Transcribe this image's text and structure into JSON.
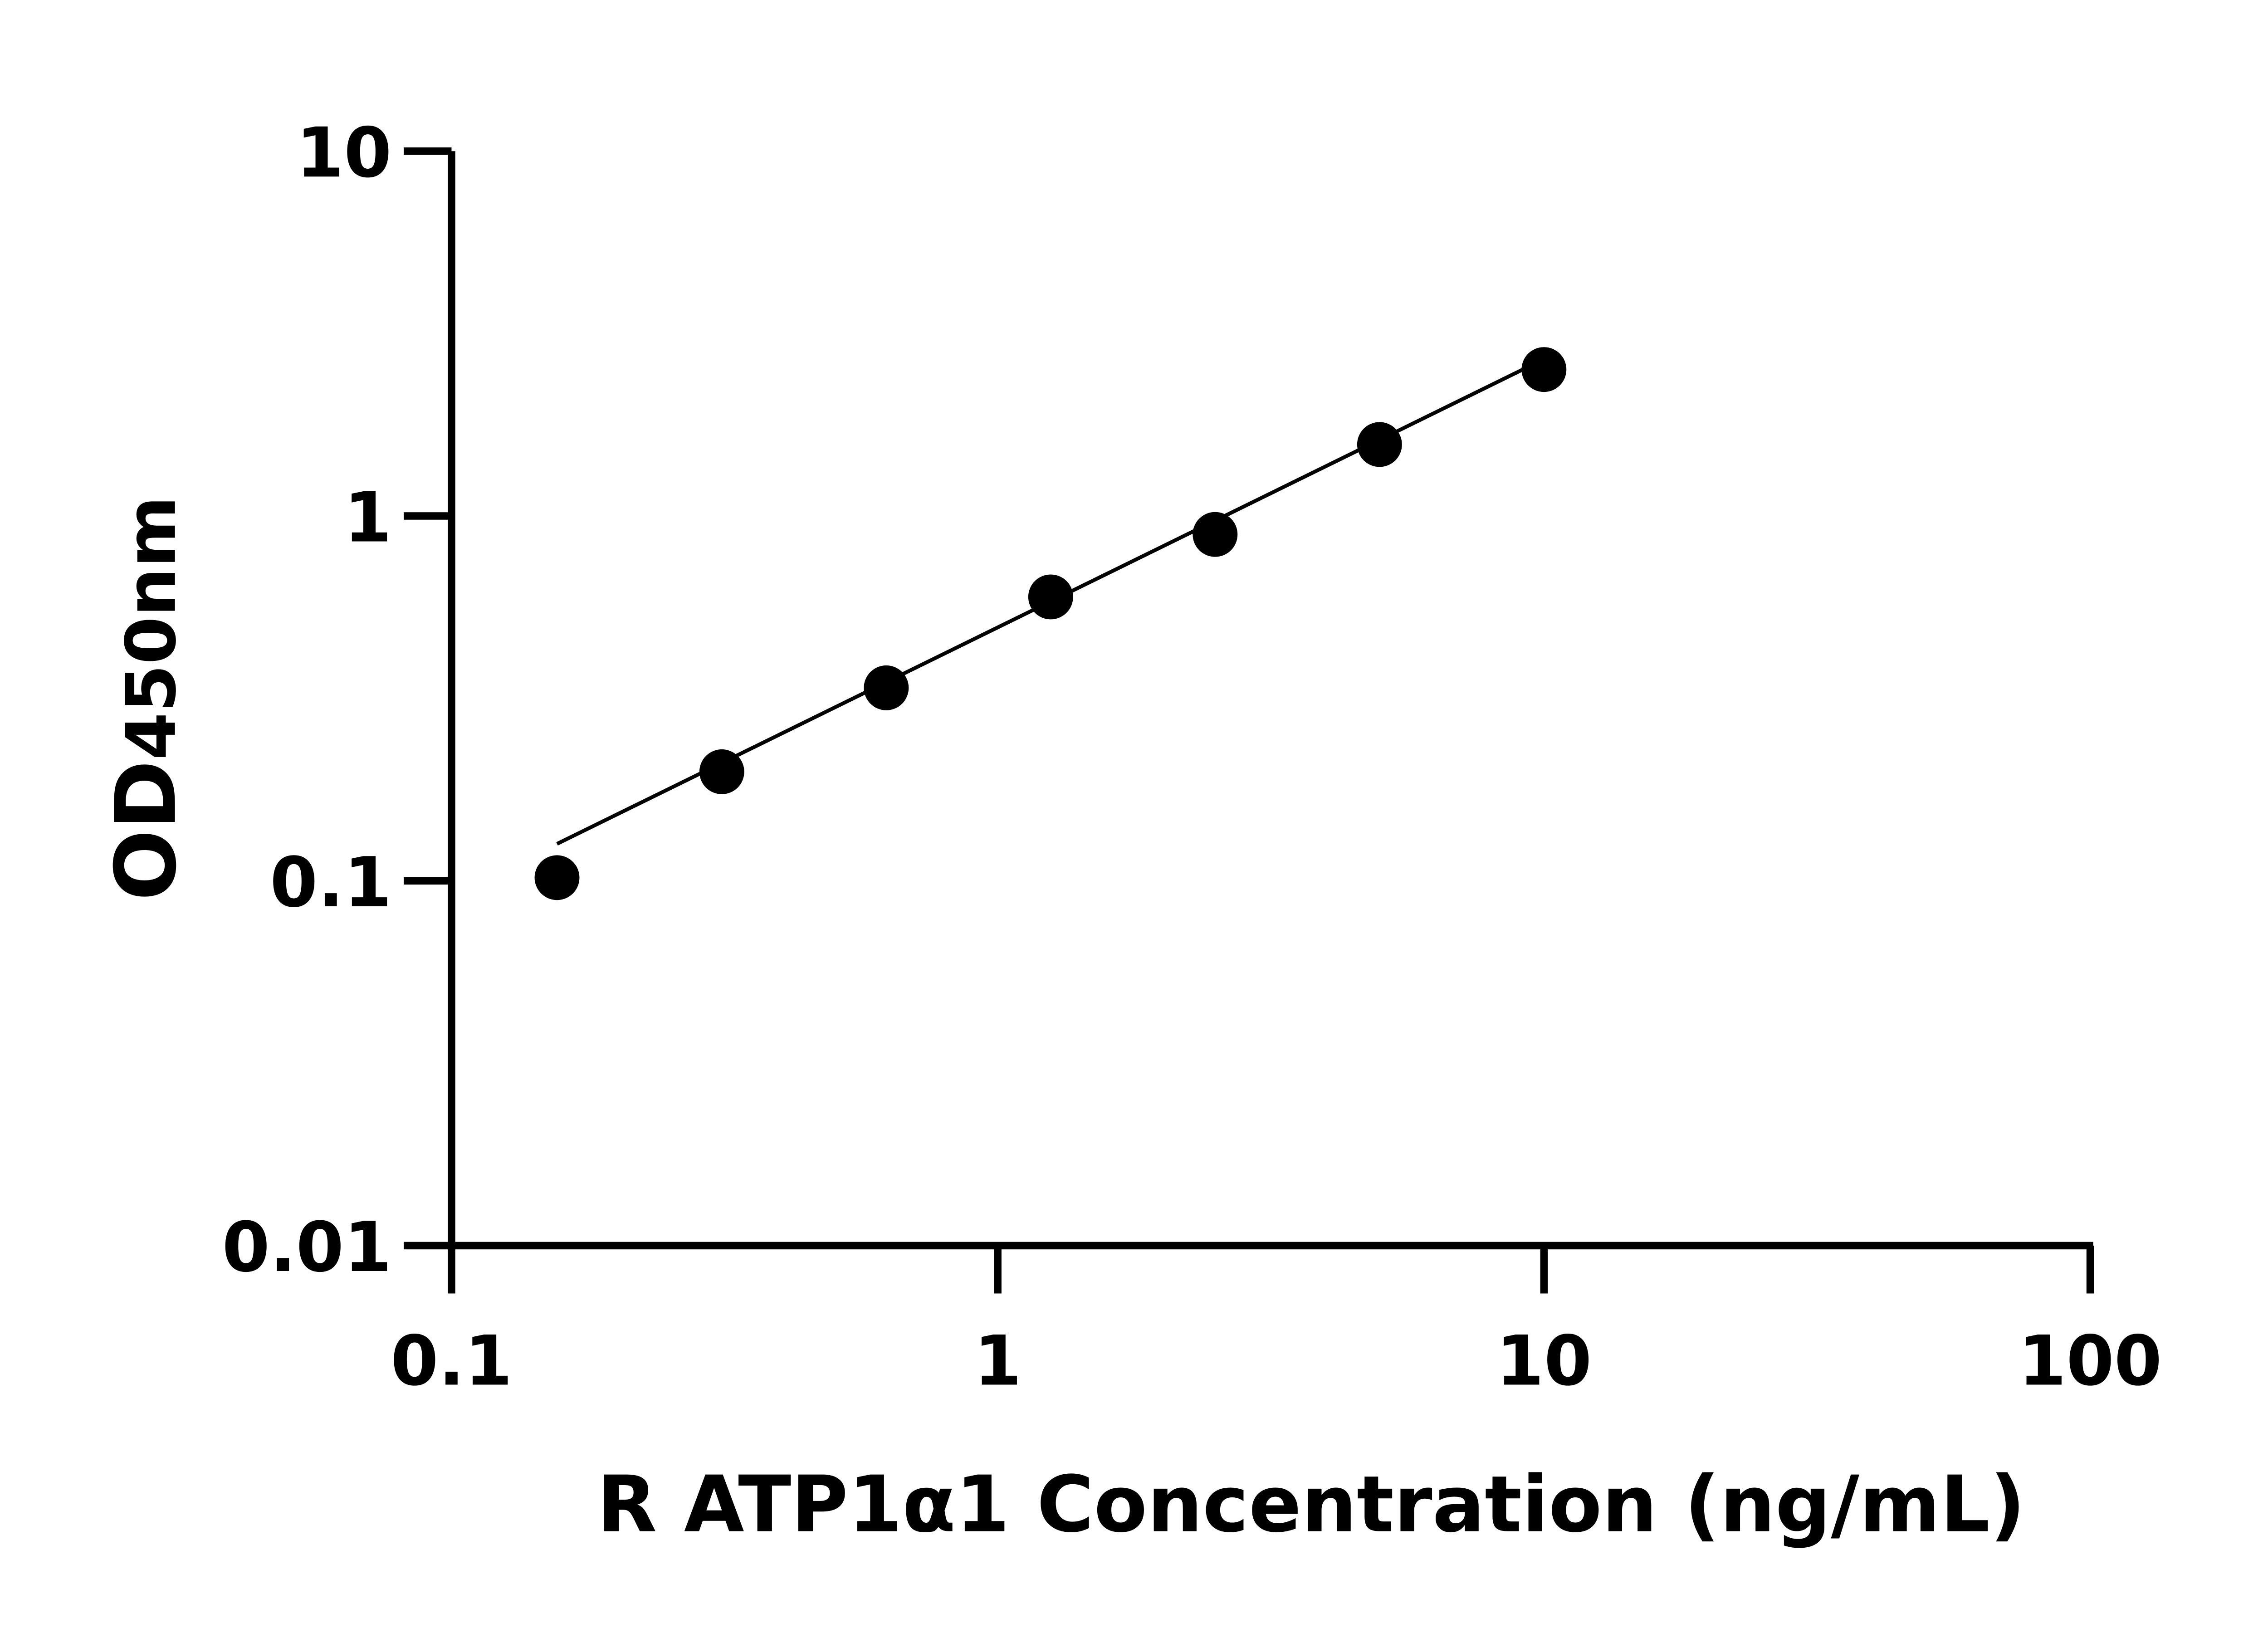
{
  "chart_data": {
    "type": "scatter",
    "title": "",
    "xlabel": "R ATP1α1 Concentration (ng/mL)",
    "ylabel_main": "OD",
    "ylabel_sub": "450nm",
    "x_scale": "log",
    "y_scale": "log",
    "xlim": [
      0.1,
      100
    ],
    "ylim": [
      0.01,
      10
    ],
    "x_ticks": [
      0.1,
      1,
      10,
      100
    ],
    "x_tick_labels": [
      "0.1",
      "1",
      "10",
      "100"
    ],
    "y_ticks": [
      0.01,
      0.1,
      1,
      10
    ],
    "y_tick_labels": [
      "0.01",
      "0.1",
      "1",
      "10"
    ],
    "grid": false,
    "legend": "none",
    "marker_color": "#000000",
    "fit_line": "log-log linear fit",
    "series": [
      {
        "x": [
          0.156,
          0.3125,
          0.625,
          1.25,
          2.5,
          5,
          10
        ],
        "y": [
          0.102,
          0.199,
          0.338,
          0.6,
          0.89,
          1.57,
          2.52
        ]
      }
    ]
  }
}
